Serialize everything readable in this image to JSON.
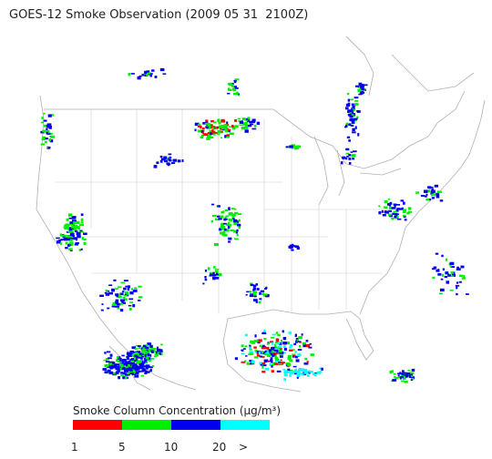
{
  "title": "GOES-12 Smoke Observation (2009 05 31  2100Z)",
  "legend": {
    "title": "Smoke Column Concentration (μg/m³)",
    "colors": [
      "#ff0000",
      "#00ee00",
      "#0000ee",
      "#00ffff"
    ],
    "labels": [
      "1",
      "5",
      "10",
      "20",
      ">"
    ]
  }
}
